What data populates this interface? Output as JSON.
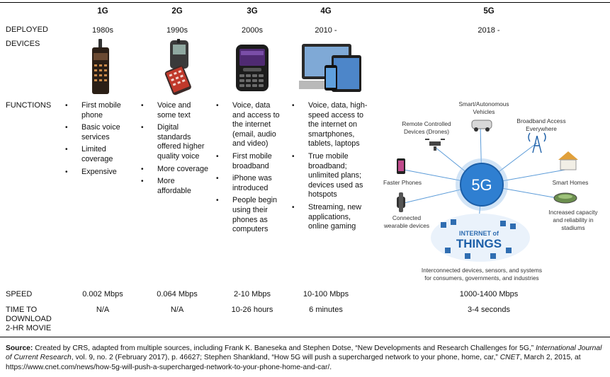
{
  "headers": [
    "1G",
    "2G",
    "3G",
    "4G",
    "5G"
  ],
  "row_labels": {
    "deployed": "DEPLOYED",
    "devices": "DEVICES",
    "functions": "FUNCTIONS",
    "speed": "SPEED",
    "time": [
      "TIME TO",
      "DOWNLOAD",
      "2-HR MOVIE"
    ]
  },
  "deployed": [
    "1980s",
    "1990s",
    "2000s",
    "2010 -",
    "2018 -"
  ],
  "functions": {
    "g1": [
      "First mobile phone",
      "Basic voice services",
      "Limited coverage",
      "Expensive"
    ],
    "g2": [
      "Voice and some text",
      "Digital standards offered higher quality voice",
      "More coverage",
      "More affordable"
    ],
    "g3": [
      "Voice, data and access to the internet (email, audio and video)",
      "First mobile broadband",
      "iPhone was introduced",
      "People begin using their phones as computers"
    ],
    "g4": [
      "Voice, data, high-speed access to the internet on smartphones, tablets, laptops",
      "True mobile broadband; unlimited plans; devices used as hotspots",
      "Streaming, new applications, online gaming"
    ]
  },
  "diagram": {
    "center": "5G",
    "labels": {
      "autonomous": [
        "Smart/Autonomous",
        "Vehicles"
      ],
      "drones": [
        "Remote Controlled",
        "Devices (Drones)"
      ],
      "broadband": [
        "Broadband Access",
        "Everywhere"
      ],
      "phones": "Faster Phones",
      "homes": "Smart Homes",
      "wearables": [
        "Connected",
        "wearable devices"
      ],
      "stadiums": [
        "Increased capacity",
        "and reliability in",
        "stadiums"
      ],
      "iot_small": "INTERNET of",
      "iot_big": "THINGS",
      "interconnected": [
        "Interconnected devices, sensors, and systems",
        "for consumers, governments, and industries"
      ]
    }
  },
  "speed": [
    "0.002 Mbps",
    "0.064 Mbps",
    "2-10 Mbps",
    "10-100 Mbps",
    "1000-1400 Mbps"
  ],
  "download_time": [
    "N/A",
    "N/A",
    "10-26 hours",
    "6 minutes",
    "3-4 seconds"
  ],
  "source": {
    "label": "Source:",
    "text1": " Created by CRS, adapted from multiple sources, including Frank K. Baneseka and Stephen Dotse, “New Developments and Research Challenges for 5G,” ",
    "journal": "International Journal of Current Research",
    "text2": ", vol. 9, no. 2 (February 2017), p. 46627; Stephen Shankland, “How 5G will push a supercharged network to your phone, home, car,” ",
    "cnet": "CNET",
    "text3": ", March 2, 2015, at https://www.cnet.com/news/how-5g-will-push-a-supercharged-network-to-your-phone-home-and-car/."
  },
  "colors": {
    "hub": "#2f7fd1",
    "hub_dark": "#1c5fa8",
    "spoke": "#5b9bd8"
  }
}
